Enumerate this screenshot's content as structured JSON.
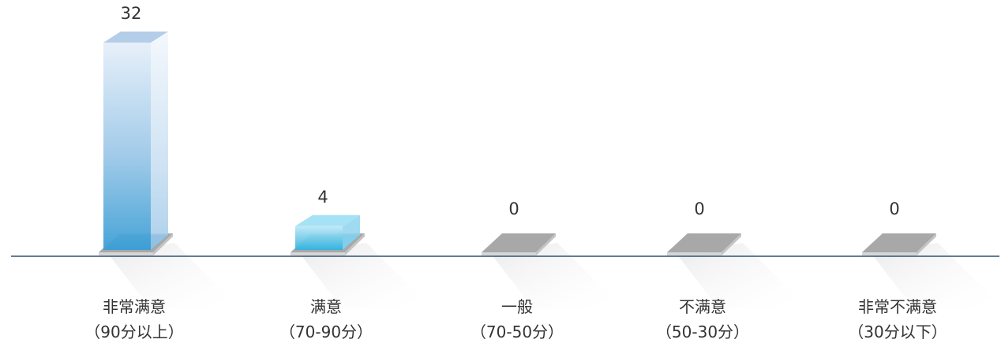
{
  "chart_data": {
    "type": "bar",
    "categories": [
      {
        "line1": "非常满意",
        "line2": "（90分以上）"
      },
      {
        "line1": "满意",
        "line2": "（70-90分）"
      },
      {
        "line1": "一般",
        "line2": "（70-50分）"
      },
      {
        "line1": "不满意",
        "line2": "（50-30分）"
      },
      {
        "line1": "非常不满意",
        "line2": "（30分以下）"
      }
    ],
    "values": [
      32,
      4,
      0,
      0,
      0
    ],
    "value_labels": [
      "32",
      "4",
      "0",
      "0",
      "0"
    ],
    "ylim": [
      0,
      32
    ],
    "grid": false,
    "legend": "none",
    "colors": {
      "bar_top": "#3fa2d6",
      "bar_light": "#e4eef8",
      "bar_side": "#b9d8ee",
      "base_plate": "#a9a9a9",
      "base_edge": "#d2d2d2",
      "axis": "#31506e",
      "text": "#333333"
    }
  }
}
